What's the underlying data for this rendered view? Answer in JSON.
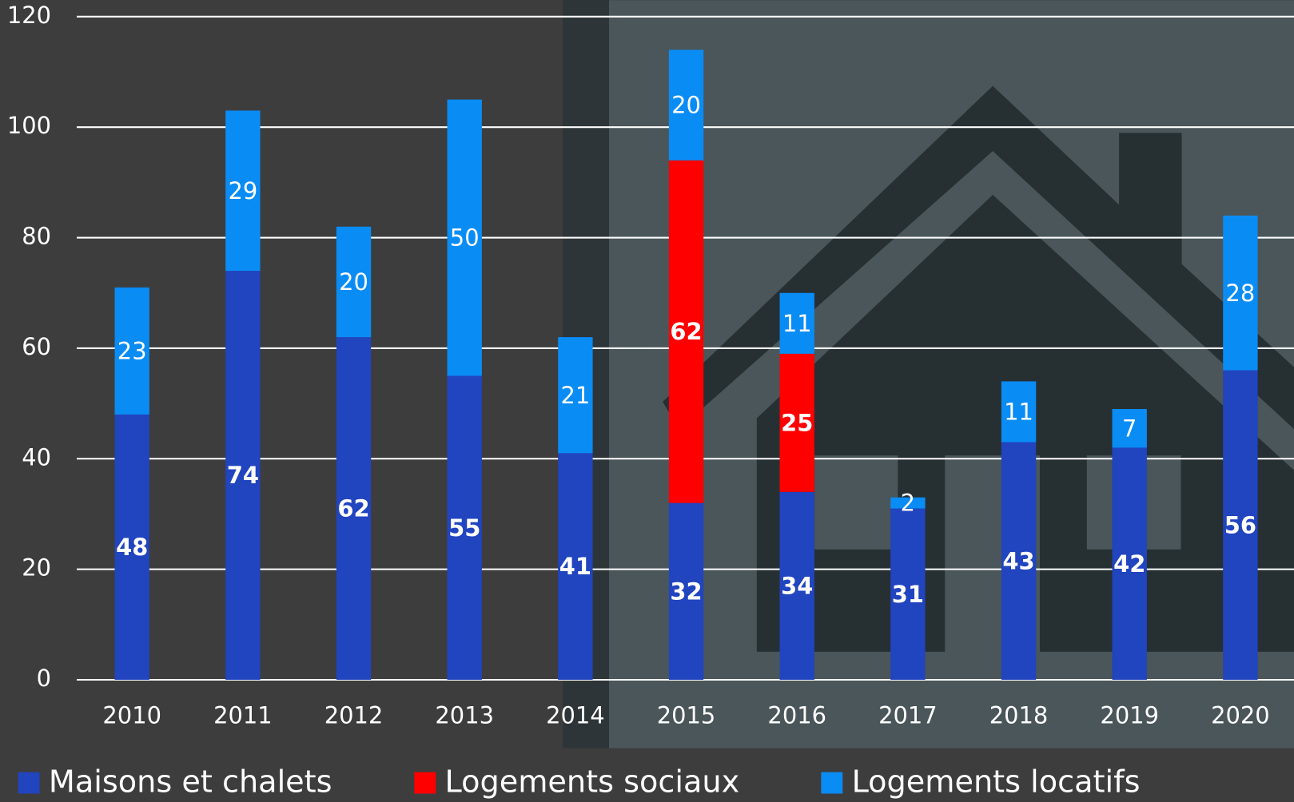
{
  "chart_data": {
    "type": "stacked_bar",
    "categories": [
      "2010",
      "2011",
      "2012",
      "2013",
      "2014",
      "2015",
      "2016",
      "2017",
      "2018",
      "2019",
      "2020"
    ],
    "series": [
      {
        "name": "Maisons et chalets",
        "color": "#2144bf",
        "values": [
          48,
          74,
          62,
          55,
          41,
          32,
          34,
          31,
          43,
          42,
          56
        ]
      },
      {
        "name": "Logements sociaux",
        "color": "#ff0000",
        "values": [
          null,
          null,
          null,
          null,
          null,
          62,
          25,
          null,
          null,
          null,
          null
        ]
      },
      {
        "name": "Logements locatifs",
        "color": "#0a8cf5",
        "values": [
          23,
          29,
          20,
          50,
          21,
          20,
          11,
          2,
          11,
          7,
          28
        ]
      }
    ],
    "ylim": [
      0,
      120
    ],
    "yticks": [
      0,
      20,
      40,
      60,
      80,
      100,
      120
    ],
    "grid": true
  }
}
